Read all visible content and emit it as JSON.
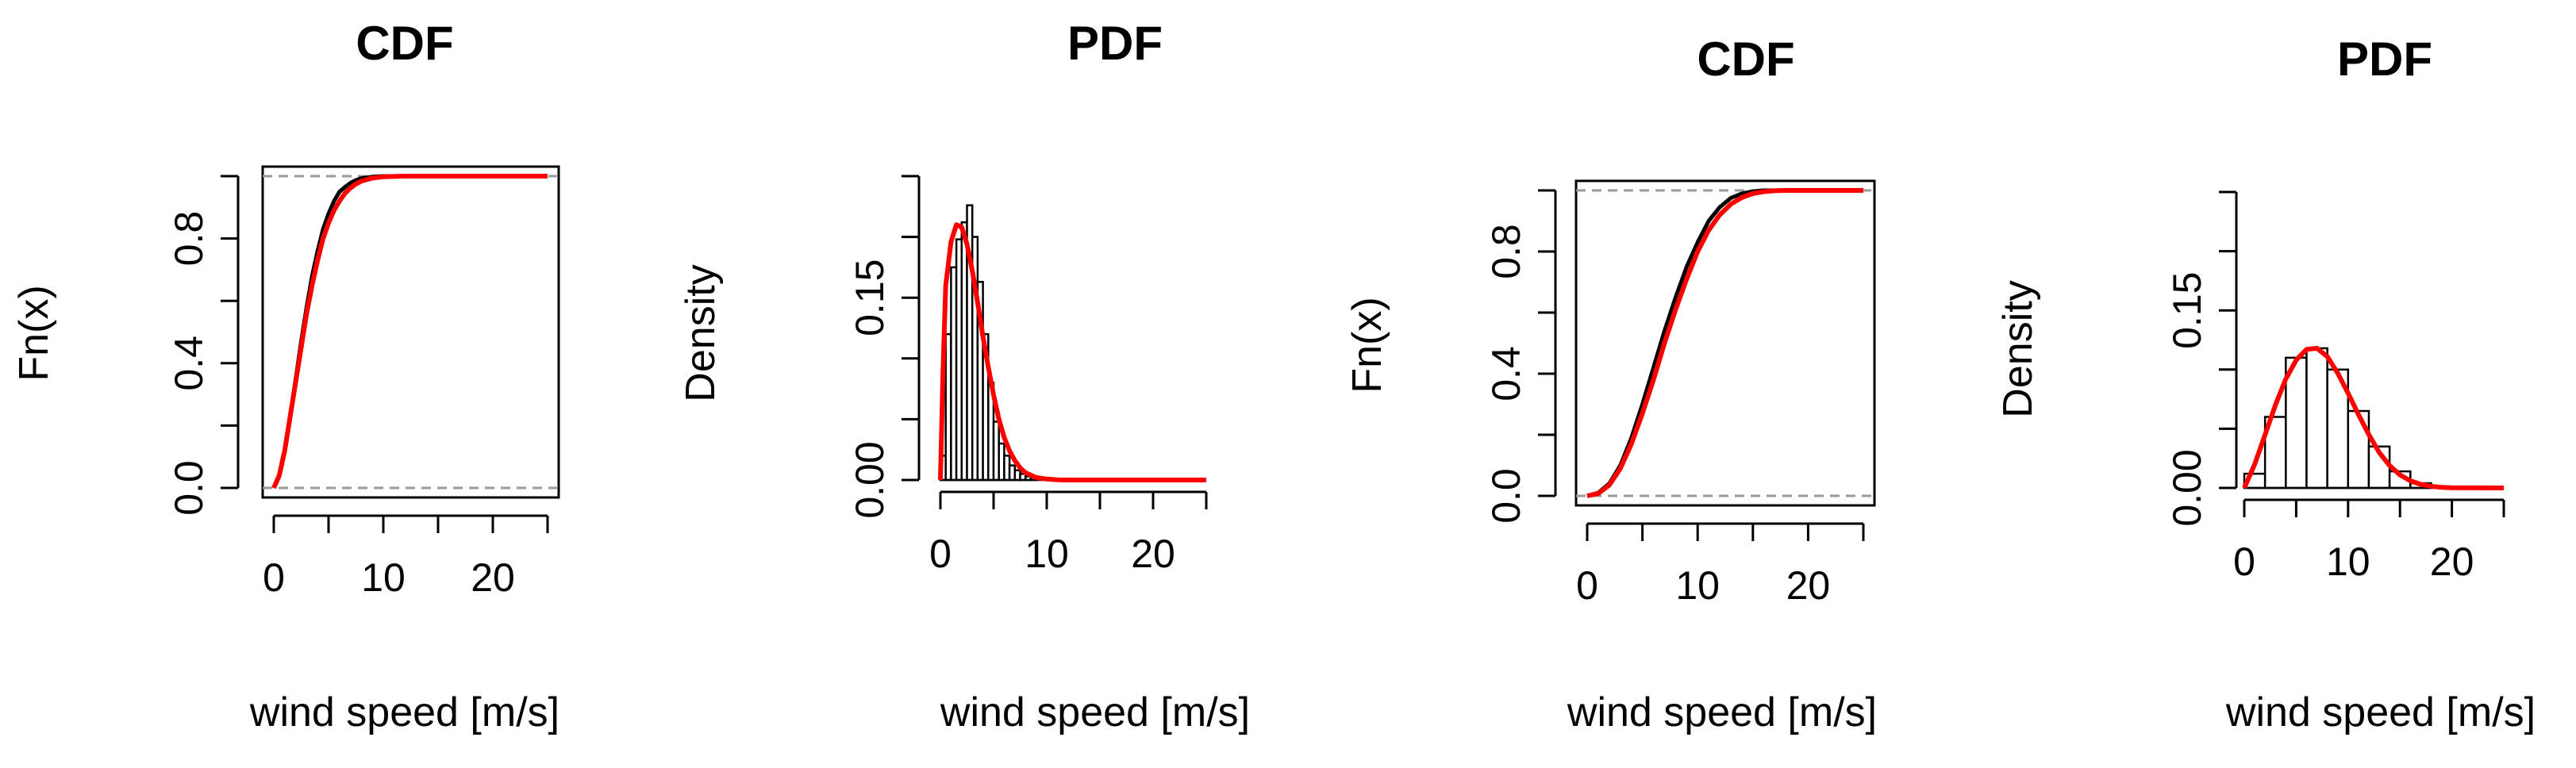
{
  "chart_data": [
    {
      "type": "line",
      "title": "CDF",
      "xlabel": "wind speed [m/s]",
      "ylabel": "Fn(x)",
      "xlim": [
        0,
        25
      ],
      "ylim": [
        0,
        1
      ],
      "xticks": [
        0,
        5,
        10,
        15,
        20,
        25
      ],
      "xtick_labels": [
        "0",
        "10",
        "20"
      ],
      "xtick_label_values": [
        0,
        10,
        20
      ],
      "yticks": [
        0,
        0.2,
        0.4,
        0.6,
        0.8,
        1.0
      ],
      "ytick_labels": [
        "0.0",
        "0.4",
        "0.8"
      ],
      "ytick_label_values": [
        0,
        0.4,
        0.8
      ],
      "reference_lines": [
        0,
        1
      ],
      "series": [
        {
          "name": "empirical",
          "color": "#000000",
          "x": [
            0,
            0.5,
            1,
            1.5,
            2,
            2.5,
            3,
            3.5,
            4,
            4.5,
            5,
            5.5,
            6,
            6.5,
            7,
            7.5,
            8,
            9,
            10,
            12,
            25
          ],
          "y": [
            0,
            0.04,
            0.12,
            0.23,
            0.35,
            0.47,
            0.58,
            0.68,
            0.76,
            0.83,
            0.88,
            0.92,
            0.95,
            0.965,
            0.978,
            0.987,
            0.993,
            0.998,
            1.0,
            1.0,
            1.0
          ]
        },
        {
          "name": "fitted",
          "color": "#ff0000",
          "x": [
            0,
            0.5,
            1,
            1.5,
            2,
            2.5,
            3,
            3.5,
            4,
            4.5,
            5,
            5.5,
            6,
            6.5,
            7,
            7.5,
            8,
            9,
            10,
            11,
            12,
            25
          ],
          "y": [
            0,
            0.04,
            0.12,
            0.23,
            0.34,
            0.45,
            0.56,
            0.65,
            0.73,
            0.8,
            0.85,
            0.89,
            0.92,
            0.945,
            0.962,
            0.975,
            0.984,
            0.994,
            0.998,
            0.999,
            1.0,
            1.0
          ]
        }
      ]
    },
    {
      "type": "bar",
      "title": "PDF",
      "xlabel": "wind speed [m/s]",
      "ylabel": "Density",
      "xlim": [
        0,
        25
      ],
      "ylim": [
        0,
        0.25
      ],
      "xticks": [
        0,
        5,
        10,
        15,
        20,
        25
      ],
      "xtick_labels": [
        "0",
        "10",
        "20"
      ],
      "xtick_label_values": [
        0,
        10,
        20
      ],
      "yticks": [
        0,
        0.05,
        0.1,
        0.15,
        0.2,
        0.25
      ],
      "ytick_labels": [
        "0.00",
        "0.15"
      ],
      "ytick_label_values": [
        0,
        0.15
      ],
      "bin_edges": [
        0,
        0.5,
        1,
        1.5,
        2,
        2.5,
        3,
        3.5,
        4,
        4.5,
        5,
        5.5,
        6,
        6.5,
        7,
        7.5,
        8,
        8.5,
        9
      ],
      "values": [
        0.02,
        0.12,
        0.175,
        0.198,
        0.212,
        0.226,
        0.2,
        0.163,
        0.12,
        0.08,
        0.048,
        0.03,
        0.02,
        0.012,
        0.008,
        0.005,
        0.003,
        0.002
      ],
      "fit_series": {
        "name": "fitted density",
        "color": "#ff0000",
        "x": [
          0,
          0.25,
          0.5,
          1,
          1.5,
          2,
          2.5,
          3,
          3.5,
          4,
          4.5,
          5,
          5.5,
          6,
          6.5,
          7,
          7.5,
          8,
          9,
          10,
          11,
          12,
          25
        ],
        "y": [
          0,
          0.09,
          0.16,
          0.196,
          0.21,
          0.208,
          0.194,
          0.172,
          0.146,
          0.118,
          0.093,
          0.07,
          0.05,
          0.035,
          0.024,
          0.016,
          0.01,
          0.006,
          0.002,
          0.0008,
          0.0002,
          0.0,
          0.0
        ]
      }
    },
    {
      "type": "line",
      "title": "CDF",
      "xlabel": "wind speed [m/s]",
      "ylabel": "Fn(x)",
      "xlim": [
        0,
        25
      ],
      "ylim": [
        0,
        1
      ],
      "xticks": [
        0,
        5,
        10,
        15,
        20,
        25
      ],
      "xtick_labels": [
        "0",
        "10",
        "20"
      ],
      "xtick_label_values": [
        0,
        10,
        20
      ],
      "yticks": [
        0,
        0.2,
        0.4,
        0.6,
        0.8,
        1.0
      ],
      "ytick_labels": [
        "0.0",
        "0.4",
        "0.8"
      ],
      "ytick_label_values": [
        0,
        0.4,
        0.8
      ],
      "reference_lines": [
        0,
        1
      ],
      "series": [
        {
          "name": "empirical",
          "color": "#000000",
          "x": [
            0,
            1,
            2,
            3,
            4,
            5,
            6,
            7,
            8,
            9,
            10,
            11,
            12,
            13,
            14,
            15,
            16,
            17,
            25
          ],
          "y": [
            0,
            0.01,
            0.04,
            0.1,
            0.19,
            0.3,
            0.42,
            0.54,
            0.65,
            0.75,
            0.83,
            0.9,
            0.945,
            0.975,
            0.99,
            0.997,
            1.0,
            1.0,
            1.0
          ]
        },
        {
          "name": "fitted",
          "color": "#ff0000",
          "x": [
            0,
            1,
            2,
            3,
            4,
            5,
            6,
            7,
            8,
            9,
            10,
            11,
            12,
            13,
            14,
            15,
            16,
            17,
            18,
            25
          ],
          "y": [
            0,
            0.008,
            0.035,
            0.09,
            0.17,
            0.27,
            0.38,
            0.5,
            0.61,
            0.71,
            0.8,
            0.87,
            0.92,
            0.955,
            0.977,
            0.99,
            0.996,
            0.999,
            1.0,
            1.0
          ]
        }
      ]
    },
    {
      "type": "bar",
      "title": "PDF",
      "xlabel": "wind speed [m/s]",
      "ylabel": "Density",
      "xlim": [
        0,
        25
      ],
      "ylim": [
        0,
        0.25
      ],
      "xticks": [
        0,
        5,
        10,
        15,
        20,
        25
      ],
      "xtick_labels": [
        "0",
        "10",
        "20"
      ],
      "xtick_label_values": [
        0,
        10,
        20
      ],
      "yticks": [
        0,
        0.05,
        0.1,
        0.15,
        0.2,
        0.25
      ],
      "ytick_labels": [
        "0.00",
        "0.15"
      ],
      "ytick_label_values": [
        0,
        0.15
      ],
      "bin_edges": [
        0,
        2,
        4,
        6,
        8,
        10,
        12,
        14,
        16,
        18
      ],
      "values": [
        0.012,
        0.06,
        0.11,
        0.118,
        0.1,
        0.065,
        0.035,
        0.014,
        0.004
      ],
      "fit_series": {
        "name": "fitted density",
        "color": "#ff0000",
        "x": [
          0,
          1,
          2,
          3,
          4,
          5,
          6,
          7,
          8,
          9,
          10,
          11,
          12,
          13,
          14,
          15,
          16,
          17,
          18,
          19,
          20,
          25
        ],
        "y": [
          0,
          0.02,
          0.045,
          0.07,
          0.092,
          0.108,
          0.117,
          0.118,
          0.111,
          0.097,
          0.08,
          0.062,
          0.045,
          0.03,
          0.019,
          0.011,
          0.006,
          0.003,
          0.0015,
          0.0005,
          0.0002,
          0.0
        ]
      }
    }
  ]
}
